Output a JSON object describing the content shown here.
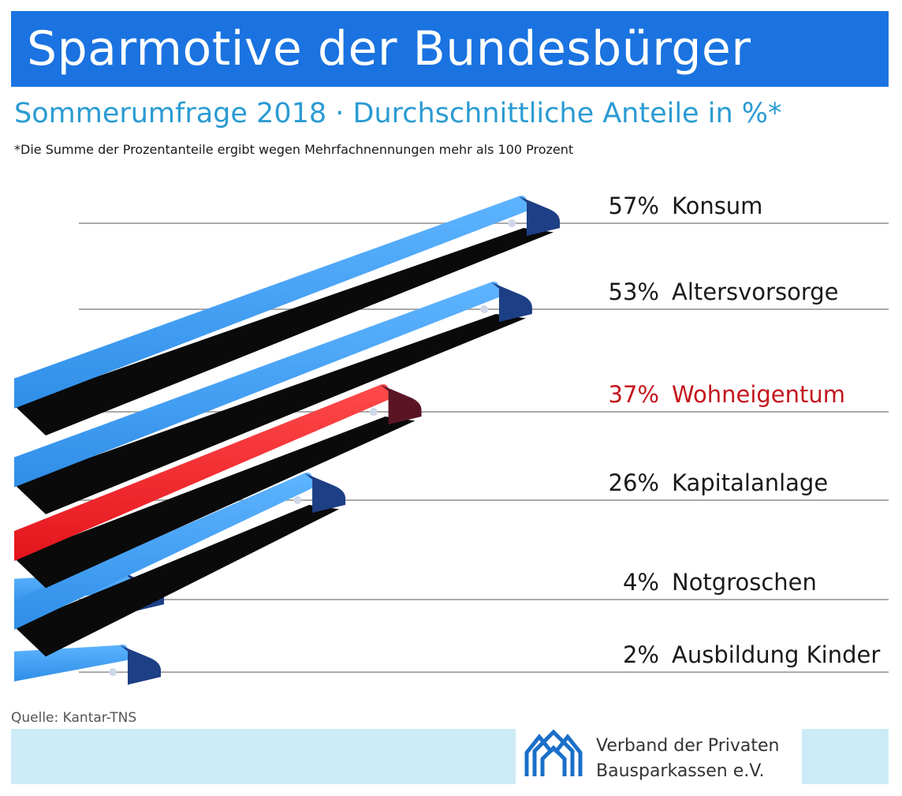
{
  "header": {
    "title": "Sparmotive der Bundesbürger",
    "subtitle": "Sommerumfrage 2018 · Durchschnittliche Anteile in %*",
    "footnote": "*Die Summe der Prozentanteile ergibt wegen Mehrfachnennungen mehr als 100 Prozent"
  },
  "chart_data": {
    "type": "bar",
    "orientation": "horizontal",
    "title": "Sparmotive der Bundesbürger",
    "subtitle": "Sommerumfrage 2018 · Durchschnittliche Anteile in %*",
    "unit": "%",
    "categories": [
      "Konsum",
      "Altersvorsorge",
      "Wohneigentum",
      "Kapitalanlage",
      "Notgroschen",
      "Ausbildung Kinder"
    ],
    "values": [
      57,
      53,
      37,
      26,
      4,
      2
    ],
    "value_labels": [
      "57%",
      "53%",
      "37%",
      "26%",
      "4%",
      "2%"
    ],
    "highlighted_category": "Wohneigentum",
    "xlim": [
      0,
      57
    ],
    "colors": {
      "bar": "#2f8ee8",
      "bar_end": "#1d3f85",
      "highlight": "#e4141c",
      "highlight_end": "#5a1525",
      "shadow": "#0a0a0a",
      "leader_line": "#aaaaaa",
      "highlight_text": "#c4161c",
      "text": "#1a1a1a"
    }
  },
  "footer": {
    "source": "Quelle: Kantar-TNS",
    "org_line1": "Verband der Privaten",
    "org_line2": "Bausparkassen e.V.",
    "logo_icon": "houses-icon",
    "logo_color": "#1a6fc9",
    "band_color": "#cdebf7"
  }
}
